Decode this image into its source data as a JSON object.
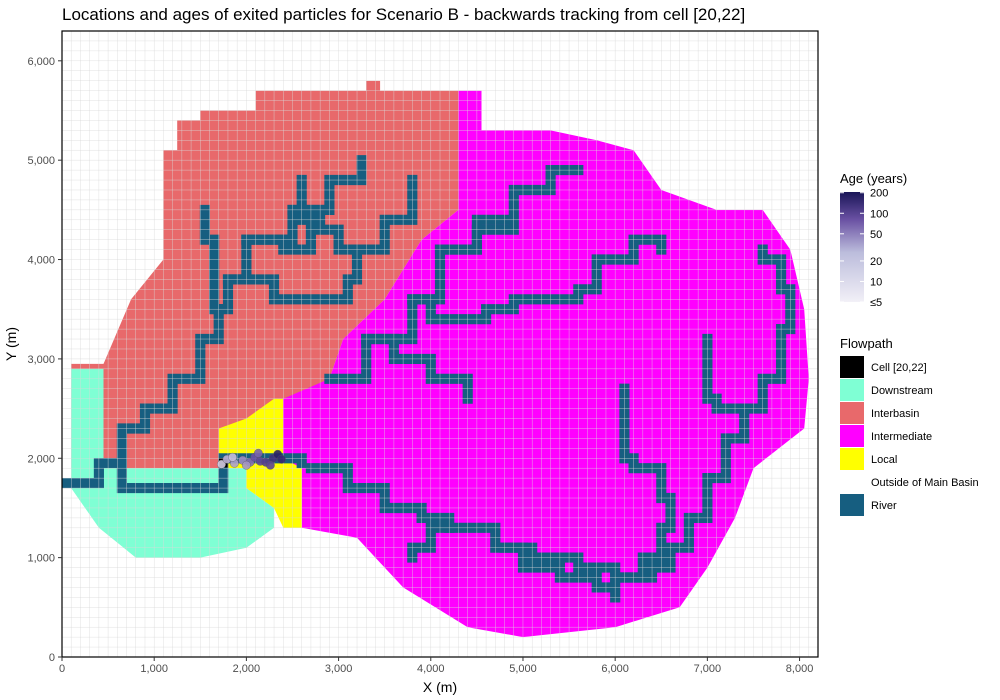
{
  "chart_data": {
    "type": "heatmap",
    "title": "Locations and ages of exited particles for Scenario B - backwards tracking from cell [20,22]",
    "xlabel": "X (m)",
    "ylabel": "Y (m)",
    "xlim": [
      0,
      8200
    ],
    "ylim": [
      0,
      6300
    ],
    "cell_size": 100,
    "grid": true,
    "x_ticks": [
      0,
      1000,
      2000,
      3000,
      4000,
      5000,
      6000,
      7000,
      8000
    ],
    "x_tick_labels": [
      "0",
      "1,000",
      "2,000",
      "3,000",
      "4,000",
      "5,000",
      "6,000",
      "7,000",
      "8,000"
    ],
    "y_ticks": [
      0,
      1000,
      2000,
      3000,
      4000,
      5000,
      6000
    ],
    "y_tick_labels": [
      "0",
      "1,000",
      "2,000",
      "3,000",
      "4,000",
      "5,000",
      "6,000"
    ],
    "flowpath_legend": {
      "title": "Flowpath",
      "entries": [
        {
          "label": "Cell [20,22]",
          "color": "#000000"
        },
        {
          "label": "Downstream",
          "color": "#7FFFD4"
        },
        {
          "label": "Interbasin",
          "color": "#E8696B"
        },
        {
          "label": "Intermediate",
          "color": "#FF00FF"
        },
        {
          "label": "Local",
          "color": "#FFFF00"
        },
        {
          "label": "Outside of Main Basin",
          "color": "#FFFFFF"
        },
        {
          "label": "River",
          "color": "#165E80"
        }
      ]
    },
    "age_legend": {
      "title": "Age (years)",
      "labels": [
        "200",
        "100",
        "50",
        "20",
        "10",
        "≤5"
      ],
      "values": [
        200,
        100,
        50,
        20,
        10,
        5
      ],
      "scale": "log",
      "color_low": "#F2F0F7",
      "color_high": "#1A1658"
    },
    "regions": {
      "interbasin": [
        [
          100,
          1900
        ],
        [
          100,
          2950
        ],
        [
          450,
          2950
        ],
        [
          750,
          3600
        ],
        [
          1100,
          4000
        ],
        [
          1100,
          5100
        ],
        [
          1250,
          5100
        ],
        [
          1250,
          5400
        ],
        [
          1500,
          5400
        ],
        [
          1500,
          5500
        ],
        [
          2100,
          5500
        ],
        [
          2100,
          5700
        ],
        [
          3300,
          5700
        ],
        [
          3300,
          5800
        ],
        [
          3450,
          5800
        ],
        [
          3450,
          5700
        ],
        [
          4300,
          5700
        ],
        [
          4300,
          4500
        ],
        [
          3900,
          4200
        ],
        [
          3500,
          3600
        ],
        [
          3050,
          3200
        ],
        [
          2900,
          2800
        ],
        [
          2500,
          2400
        ],
        [
          1700,
          1900
        ]
      ],
      "intermediate": [
        [
          4300,
          5700
        ],
        [
          4550,
          5700
        ],
        [
          4550,
          5300
        ],
        [
          5300,
          5300
        ],
        [
          5800,
          5200
        ],
        [
          6200,
          5100
        ],
        [
          6500,
          4700
        ],
        [
          7100,
          4500
        ],
        [
          7600,
          4500
        ],
        [
          7900,
          4100
        ],
        [
          8050,
          3500
        ],
        [
          8100,
          2800
        ],
        [
          8050,
          2300
        ],
        [
          7500,
          1900
        ],
        [
          7300,
          1400
        ],
        [
          7000,
          900
        ],
        [
          6700,
          500
        ],
        [
          6000,
          300
        ],
        [
          5000,
          200
        ],
        [
          4400,
          300
        ],
        [
          3700,
          700
        ],
        [
          3200,
          1200
        ],
        [
          2600,
          1300
        ],
        [
          2600,
          1900
        ],
        [
          2300,
          2000
        ],
        [
          2400,
          2600
        ],
        [
          2900,
          2800
        ],
        [
          3050,
          3200
        ],
        [
          3500,
          3600
        ],
        [
          3900,
          4200
        ],
        [
          4300,
          4500
        ]
      ],
      "downstream": [
        [
          100,
          1850
        ],
        [
          100,
          2900
        ],
        [
          450,
          2900
        ],
        [
          450,
          1900
        ],
        [
          2000,
          1900
        ],
        [
          2000,
          1700
        ],
        [
          2300,
          1500
        ],
        [
          2300,
          1300
        ],
        [
          2000,
          1100
        ],
        [
          1500,
          1000
        ],
        [
          800,
          1000
        ],
        [
          400,
          1300
        ],
        [
          100,
          1700
        ]
      ],
      "local": [
        [
          1700,
          1900
        ],
        [
          1700,
          2300
        ],
        [
          2000,
          2400
        ],
        [
          2300,
          2600
        ],
        [
          2400,
          2600
        ],
        [
          2400,
          2000
        ],
        [
          2600,
          1900
        ],
        [
          2600,
          1300
        ],
        [
          2400,
          1300
        ],
        [
          2300,
          1500
        ],
        [
          2000,
          1700
        ],
        [
          2000,
          1900
        ]
      ]
    },
    "rivers": [
      [
        [
          0,
          1750
        ],
        [
          400,
          1750
        ],
        [
          400,
          1950
        ],
        [
          650,
          1950
        ],
        [
          650,
          1700
        ],
        [
          1500,
          1700
        ],
        [
          1750,
          1850
        ],
        [
          1750,
          2000
        ],
        [
          2400,
          2000
        ],
        [
          2600,
          1950
        ]
      ],
      [
        [
          650,
          1950
        ],
        [
          650,
          2300
        ],
        [
          900,
          2500
        ],
        [
          1200,
          2800
        ],
        [
          1500,
          3200
        ],
        [
          1700,
          3500
        ],
        [
          1800,
          3800
        ],
        [
          2000,
          4200
        ],
        [
          2500,
          4500
        ],
        [
          2900,
          4800
        ],
        [
          3250,
          5000
        ]
      ],
      [
        [
          1700,
          3500
        ],
        [
          1650,
          4200
        ],
        [
          1550,
          4500
        ]
      ],
      [
        [
          2000,
          4200
        ],
        [
          2400,
          4100
        ],
        [
          2700,
          4400
        ],
        [
          2600,
          4800
        ]
      ],
      [
        [
          2500,
          4500
        ],
        [
          2800,
          4300
        ],
        [
          3000,
          4100
        ],
        [
          3500,
          4400
        ],
        [
          3800,
          4800
        ]
      ],
      [
        [
          1800,
          3800
        ],
        [
          2300,
          3600
        ],
        [
          2800,
          3600
        ],
        [
          3100,
          3800
        ],
        [
          3200,
          4100
        ]
      ],
      [
        [
          2900,
          2800
        ],
        [
          3300,
          3200
        ],
        [
          3800,
          3600
        ],
        [
          4100,
          4100
        ],
        [
          4500,
          4300
        ],
        [
          4900,
          4700
        ],
        [
          5300,
          4900
        ],
        [
          5600,
          4900
        ]
      ],
      [
        [
          3300,
          3200
        ],
        [
          3600,
          3000
        ],
        [
          4000,
          2800
        ],
        [
          4400,
          2600
        ]
      ],
      [
        [
          3800,
          3600
        ],
        [
          4000,
          3400
        ],
        [
          4600,
          3500
        ],
        [
          4900,
          3600
        ],
        [
          5600,
          3700
        ],
        [
          5800,
          4000
        ],
        [
          6200,
          4200
        ],
        [
          6500,
          4100
        ]
      ],
      [
        [
          4100,
          4100
        ],
        [
          4500,
          4400
        ],
        [
          4800,
          4400
        ]
      ],
      [
        [
          2700,
          1900
        ],
        [
          3100,
          1700
        ],
        [
          3500,
          1500
        ],
        [
          3900,
          1400
        ],
        [
          4200,
          1300
        ],
        [
          4700,
          1100
        ],
        [
          5100,
          1000
        ],
        [
          5600,
          900
        ],
        [
          6000,
          800
        ],
        [
          6400,
          900
        ],
        [
          6600,
          1100
        ],
        [
          6800,
          1400
        ],
        [
          7000,
          1800
        ],
        [
          7200,
          2200
        ],
        [
          7400,
          2500
        ],
        [
          7600,
          2800
        ],
        [
          7800,
          3300
        ],
        [
          7900,
          3700
        ],
        [
          7800,
          4000
        ],
        [
          7600,
          4100
        ]
      ],
      [
        [
          4800,
          1100
        ],
        [
          5000,
          900
        ],
        [
          5400,
          800
        ],
        [
          5800,
          700
        ],
        [
          6000,
          600
        ]
      ],
      [
        [
          6000,
          800
        ],
        [
          6300,
          1000
        ],
        [
          6500,
          1300
        ],
        [
          6600,
          1600
        ],
        [
          6500,
          1900
        ],
        [
          6200,
          2000
        ],
        [
          6100,
          2300
        ],
        [
          6100,
          2700
        ]
      ],
      [
        [
          7400,
          2500
        ],
        [
          7100,
          2600
        ],
        [
          7000,
          3000
        ],
        [
          7000,
          3200
        ]
      ],
      [
        [
          4200,
          1300
        ],
        [
          4000,
          1100
        ],
        [
          3800,
          1000
        ]
      ]
    ],
    "particles": [
      {
        "x": 1730,
        "y": 1940,
        "age": 8
      },
      {
        "x": 1790,
        "y": 1990,
        "age": 12
      },
      {
        "x": 1870,
        "y": 1950,
        "age": 15
      },
      {
        "x": 1960,
        "y": 1980,
        "age": 20
      },
      {
        "x": 2040,
        "y": 1960,
        "age": 30
      },
      {
        "x": 2090,
        "y": 2010,
        "age": 45
      },
      {
        "x": 2150,
        "y": 1970,
        "age": 55
      },
      {
        "x": 2210,
        "y": 1960,
        "age": 70
      },
      {
        "x": 2290,
        "y": 2000,
        "age": 100
      },
      {
        "x": 2340,
        "y": 2040,
        "age": 150
      },
      {
        "x": 2380,
        "y": 1990,
        "age": 120
      },
      {
        "x": 2260,
        "y": 1930,
        "age": 60
      },
      {
        "x": 2130,
        "y": 2050,
        "age": 35
      },
      {
        "x": 2000,
        "y": 1930,
        "age": 18
      },
      {
        "x": 1850,
        "y": 2010,
        "age": 10
      }
    ],
    "target_cell": {
      "x": 1750,
      "y": 1950
    }
  }
}
